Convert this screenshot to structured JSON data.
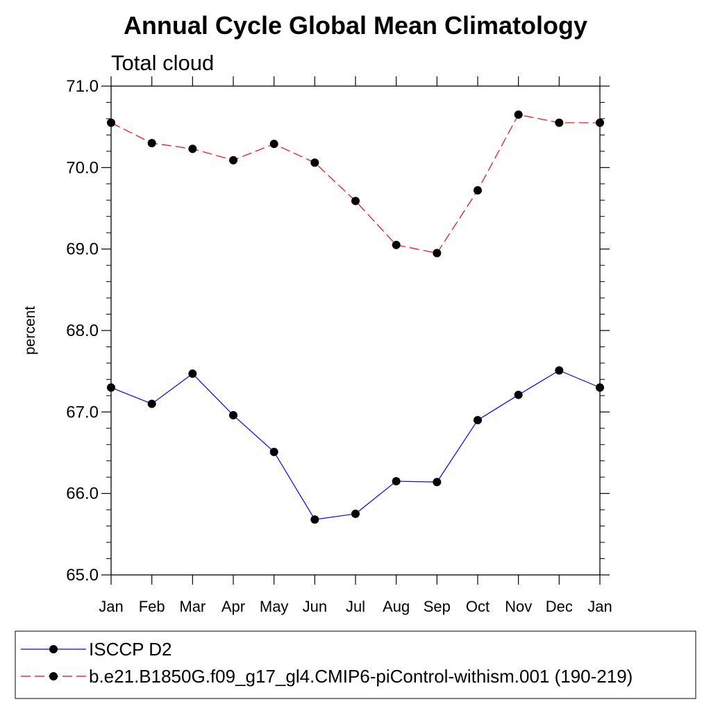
{
  "chart_data": {
    "type": "line",
    "title": "Annual Cycle Global Mean Climatology",
    "subtitle": "Total cloud",
    "ylabel": "percent",
    "xlabel": "",
    "categories": [
      "Jan",
      "Feb",
      "Mar",
      "Apr",
      "May",
      "Jun",
      "Jul",
      "Aug",
      "Sep",
      "Oct",
      "Nov",
      "Dec",
      "Jan"
    ],
    "ylim": [
      65.0,
      71.0
    ],
    "yticks": [
      "65.0",
      "66.0",
      "67.0",
      "68.0",
      "69.0",
      "70.0",
      "71.0"
    ],
    "grid": false,
    "legend_position": "bottom",
    "series": [
      {
        "name": "ISCCP D2",
        "color": "#0000ff",
        "line_style": "solid",
        "marker": "filled-circle",
        "values": [
          67.3,
          67.1,
          67.47,
          66.96,
          66.51,
          65.68,
          65.75,
          66.15,
          66.14,
          66.9,
          67.21,
          67.51,
          67.3
        ]
      },
      {
        "name": "b.e21.B1850G.f09_g17_gl4.CMIP6-piControl-withism.001 (190-219)",
        "color": "#ff0000",
        "line_style": "dashed",
        "marker": "filled-circle",
        "values": [
          70.55,
          70.3,
          70.23,
          70.09,
          70.29,
          70.06,
          69.59,
          69.05,
          68.95,
          69.72,
          70.65,
          70.55,
          70.55
        ]
      }
    ]
  }
}
